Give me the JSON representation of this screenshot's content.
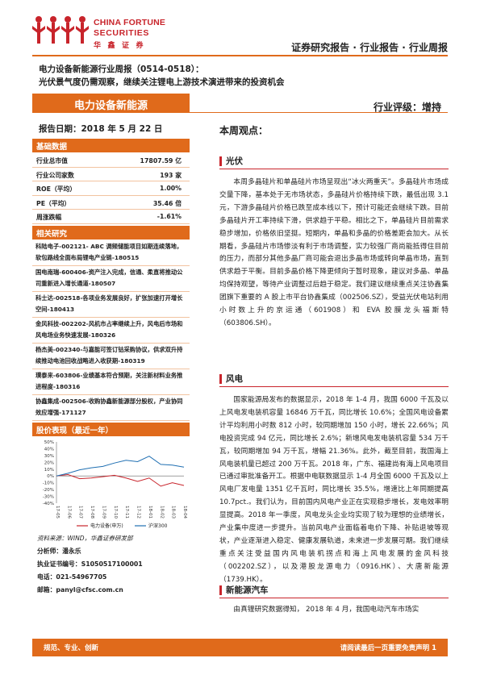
{
  "logo": {
    "en_line1": "CHINA FORTUNE",
    "en_line2": "SECURITIES",
    "cn": "华 鑫 证 券"
  },
  "header": {
    "right_title": "证券研究报告 · 行业报告 · 行业周报"
  },
  "report": {
    "title_line1": "电力设备新能源行业周报（0514-0518）：",
    "title_line2": "光伏景气度仍需观察，继续关注锂电上游技术演进带来的投资机会",
    "sector": "电力设备新能源",
    "rating": "行业评级：增持",
    "date": "报告日期：2018 年 5 月 22 日"
  },
  "basic_data": {
    "heading": "基础数据",
    "rows": [
      {
        "label": "行业总市值",
        "value": "17807.59 亿"
      },
      {
        "label": "行业公司家数",
        "value": "193 家"
      },
      {
        "label": "ROE（平均）",
        "value": "1.00%"
      },
      {
        "label": "PE（平均）",
        "value": "35.46 倍"
      },
      {
        "label": "周涨跌幅",
        "value": "-1.61%"
      }
    ]
  },
  "related_research": {
    "heading": "相关研究",
    "items": [
      "科陆电子-002121- ABC 调频储能项目如期连续落地，软包路线全面布局锂电产业链-180515",
      "国电南瑞-600406-资产注入完成，信通、柔直将推动公司重新进入增长通道-180507",
      "科士达-002518-各项业务发展良好，扩张加速打开增长空间-180413",
      "金风科技-002202-风机市占率继续上升，风电后市场和风电场业务快速发展-180326",
      "杨杰美-002340-与嘉能可签订钴采购协议，供求双升持续推动电池回收战略进入收获期-180319",
      "璞泰来-603806-业绩基本符合预期，关注新材料业务推进程度-180316",
      "协鑫集成-002506-收购协鑫新能源部分股权，产业协同效应增强-171127"
    ]
  },
  "chart_title": "股价表现（最近一年）",
  "chart_data": {
    "type": "line",
    "title": "",
    "x": [
      "17-05",
      "17-06",
      "17-07",
      "17-08",
      "17-09",
      "17-10",
      "17-11",
      "17-12",
      "18-01",
      "18-02",
      "18-03",
      "18-04"
    ],
    "x_ticks": [
      "17-05",
      "17-06",
      "17-07",
      "17-08",
      "17-09",
      "17-10",
      "17-11",
      "17-12",
      "18-01",
      "18-02",
      "18-03",
      "18-04"
    ],
    "y_ticks": [
      "50%",
      "40%",
      "30%",
      "20%",
      "10%",
      "0%",
      "-10%",
      "-20%",
      "-30%",
      "-40%"
    ],
    "ylim": [
      -40,
      50
    ],
    "grid": false,
    "legend_position": "bottom",
    "series": [
      {
        "name": "电力设备(申万)",
        "color": "#c8242b",
        "values": [
          0,
          2,
          -4,
          -3,
          -1,
          1,
          -3,
          -8,
          -3,
          -15,
          -10,
          -14
        ]
      },
      {
        "name": "沪深300",
        "color": "#1f6fb2",
        "values": [
          0,
          4,
          9,
          12,
          14,
          19,
          23,
          21,
          29,
          17,
          16,
          13
        ]
      }
    ]
  },
  "source_note": "资料来源：WIND，华鑫证券研发部",
  "analyst": {
    "name": "分析师：潘永乐",
    "cert": "执业证书编号：S1050517100001",
    "phone": "电话：021-54967705",
    "email": "邮箱：panyl@cfsc.com.cn"
  },
  "main": {
    "view_title": "本周观点：",
    "sections": [
      {
        "title": "光伏",
        "text": "本周多晶硅片和单晶硅片市场呈现出“冰火两重天”。多晶硅片市场成交量下降，基本处于无市场状态，多晶硅片价格持续下跌，最低出现 3.1 元，下游多晶硅片价格已跌至成本线以下，预计可能还会继续下跌。目前多晶硅片开工率持续下滑，供求趋于平稳。相比之下，单晶硅片目前需求稳步增加，价格依旧坚挺。短期内，单晶和多晶的价格差距会加大。从长期看，多晶硅片市场惨淡有利于市场调整，实力较强厂商尚能抵得住目前的压力，而部分其他多晶厂商可能会退出多晶市场或转向单晶市场，直到供求趋于平衡。目前多晶价格下降更倾向于暂时现象，建议对多晶、单晶均保持观望，等待产业调整过后趋于稳定。我们建议继续重点关注协鑫集团旗下重要的 A 股上市平台协鑫集成（002506.SZ），受益光伏电站利用小时数上升的京运通（601908）和 EVA 胶膜龙头福斯特（603806.SH）。"
      },
      {
        "title": "风电",
        "text": "国家能源局发布的数据显示，2018 年 1-4 月，我国 6000 千瓦及以上风电发电装机容量 16846 万千瓦，同比增长 10.6%；全国风电设备累计平均利用小时数 812 小时，较同期增加 150 小时，增长 22.66%；风电投资完成 94 亿元，同比增长 2.6%；新增风电发电装机容量 534 万千瓦，较同期增加 94 万千瓦，增幅 21.36%。此外，截至目前，我国海上风电装机量已超过 200 万千瓦。2018 年，广东、福建尚有海上风电项目已通过审批准备开工。根据中电联数据显示 1-4 月全国 6000 千瓦及以上风电厂发电量 1351 亿千瓦时，同比增长 35.5%，增速比上年同期提高 10.7pct.。我们认为，目前国内风电产业正在实现稳步增长，发电效率明显提高。2018 年一季度，风电龙头企业均实现了较为理想的业绩增长，产业集中度进一步提升。当前风电产业面临着电价下降、补贴退坡等现状，产业逐渐进入稳定、健康发展轨道，未来进一步发展可期。我们继续重点关注受益国内风电装机拐点和海上风电发展的金风科技（002202.SZ），以及港股龙源电力（0916.HK）、大唐新能源（1739.HK）。"
      },
      {
        "title": "新能源汽车",
        "text": "由真锂研究数据得知， 2018 年 4 月，我国电动汽车市场实"
      }
    ]
  },
  "footer": {
    "left": "规范、专业、创新",
    "right": "请阅读最后一页重要免责声明 1"
  },
  "colors": {
    "accent_orange": "#e06a1b",
    "brand_red": "#c8242b",
    "series_blue": "#1f6fb2"
  }
}
